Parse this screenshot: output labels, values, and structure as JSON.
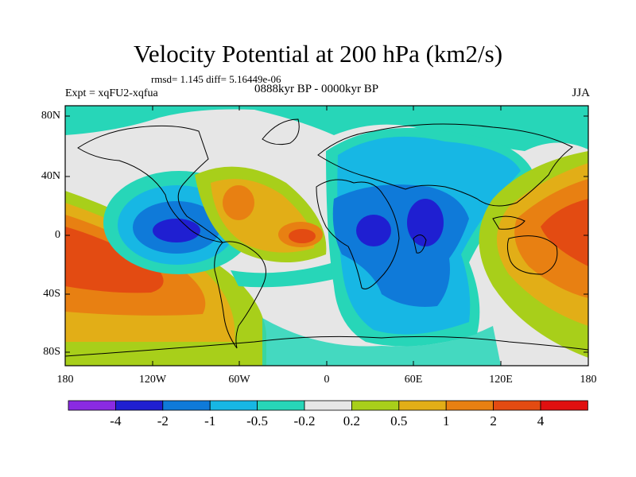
{
  "title": "Velocity Potential at 200 hPa (km2/s)",
  "stats": "rmsd= 1.145 diff= 5.16449e-06",
  "experiment": "Expt = xqFU2-xqfua",
  "period": "0888kyr BP - 0000kyr BP",
  "season": "JJA",
  "y_ticks": [
    "80N",
    "40N",
    "0",
    "40S",
    "80S"
  ],
  "x_ticks": [
    "180",
    "120W",
    "60W",
    "0",
    "60E",
    "120E",
    "180"
  ],
  "colorbar": {
    "colors": [
      "#8a2be2",
      "#1f1fd1",
      "#0f7ad9",
      "#17b7e4",
      "#27d6b8",
      "#e6e6e6",
      "#a8cf1a",
      "#e2ae17",
      "#e88012",
      "#e34b12",
      "#e01010"
    ],
    "labels": [
      "-4",
      "-2",
      "-1",
      "-0.5",
      "-0.2",
      "0.2",
      "0.5",
      "1",
      "2",
      "4"
    ]
  }
}
